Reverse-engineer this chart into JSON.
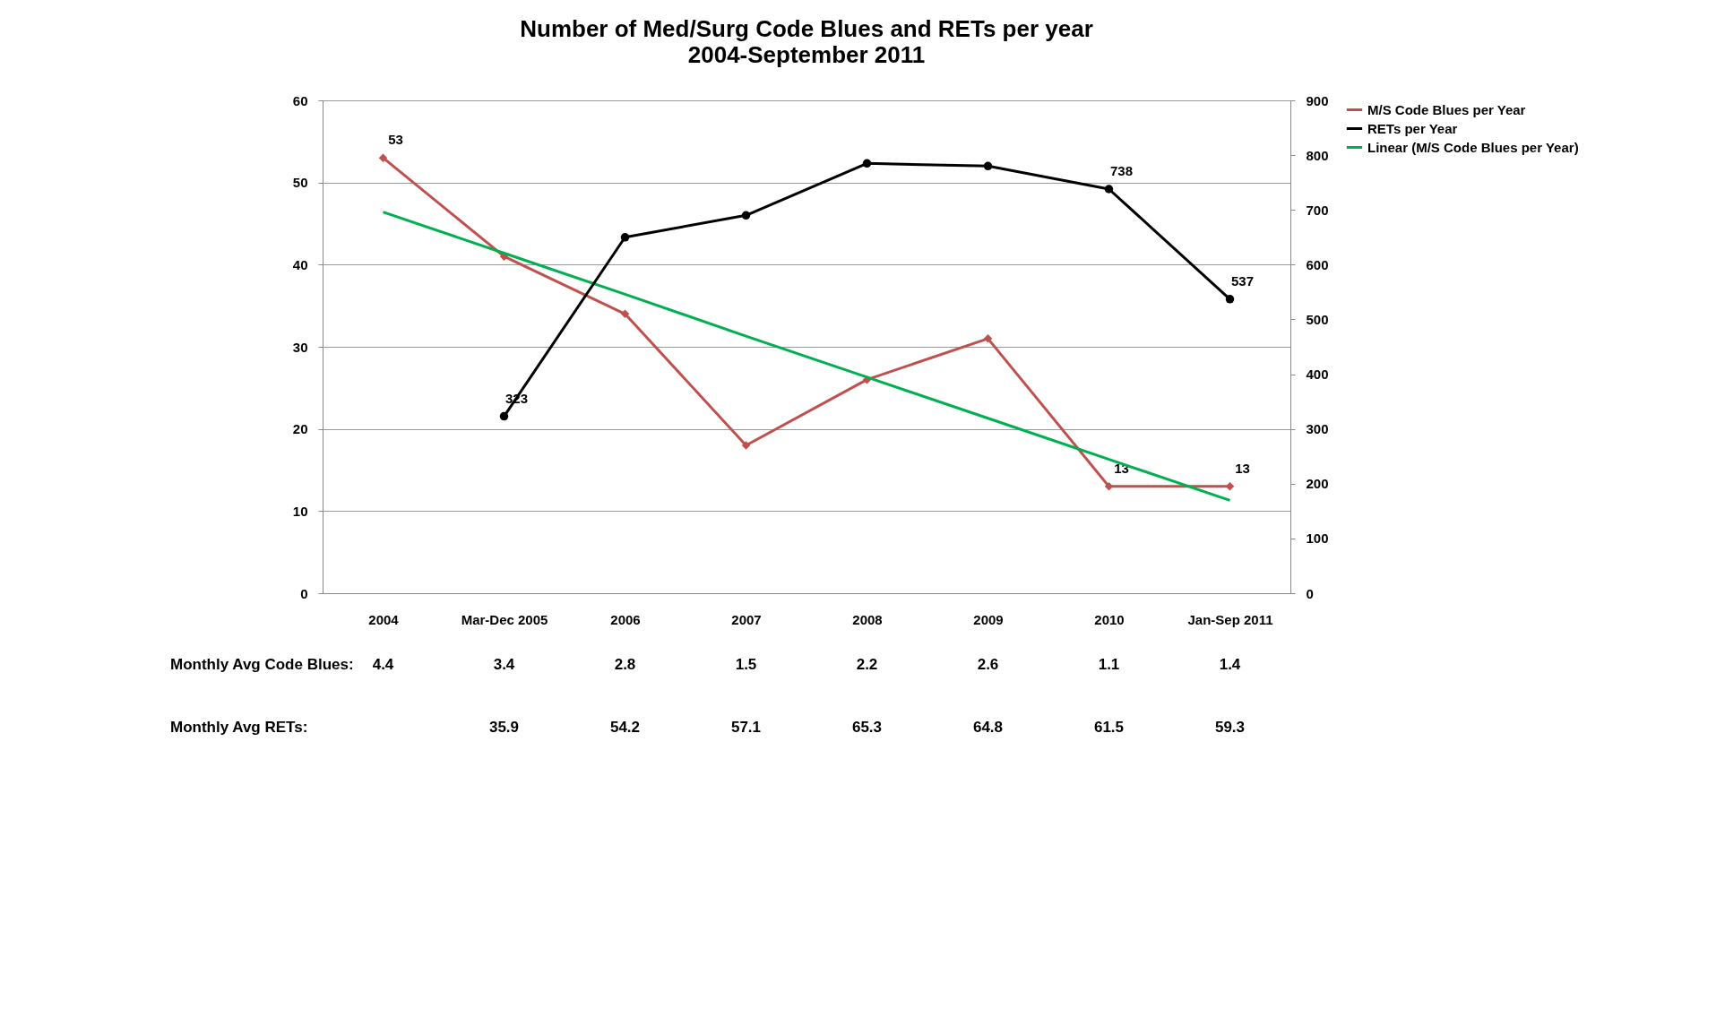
{
  "chart_data": {
    "type": "line",
    "title": "Number of  Med/Surg Code Blues and RETs per  year",
    "subtitle": "2004-September 2011",
    "categories": [
      "2004",
      "Mar-Dec 2005",
      "2006",
      "2007",
      "2008",
      "2009",
      "2010",
      "Jan-Sep 2011"
    ],
    "series": [
      {
        "name": "M/S Code Blues per Year",
        "color": "#c0504d",
        "marker": "diamond",
        "values": [
          53,
          41,
          34,
          18,
          26,
          31,
          13,
          13
        ],
        "value_labels": [
          "53",
          null,
          null,
          null,
          null,
          null,
          "13",
          "13"
        ]
      },
      {
        "name": "RETs per Year",
        "color": "#000000",
        "marker": "circle",
        "axis": "y2",
        "values": [
          null,
          323,
          650,
          690,
          785,
          780,
          738,
          537
        ],
        "value_labels": [
          null,
          "323",
          null,
          null,
          null,
          null,
          "738",
          "537"
        ]
      },
      {
        "name": "Linear (M/S Code Blues per Year)",
        "color": "#00b050",
        "marker": "none",
        "values": [
          46.4,
          41.4,
          36.4,
          31.3,
          26.3,
          21.3,
          16.3,
          11.3
        ]
      }
    ],
    "ylim": [
      0,
      60
    ],
    "yticks": [
      0,
      10,
      20,
      30,
      40,
      50,
      60
    ],
    "y2lim": [
      0,
      900
    ],
    "y2ticks": [
      0,
      100,
      200,
      300,
      400,
      500,
      600,
      700,
      800,
      900
    ],
    "grid": "y",
    "legend": "right",
    "annotations": [
      "Monthly Avg Code Blues:",
      "4.4",
      "3.4",
      "2.8",
      "1.5",
      "2.2",
      "2.6",
      "1.1",
      "1.4",
      "Monthly Avg RETs:",
      "35.9",
      "54.2",
      "57.1",
      "65.3",
      "64.8",
      "61.5",
      "59.3"
    ]
  }
}
